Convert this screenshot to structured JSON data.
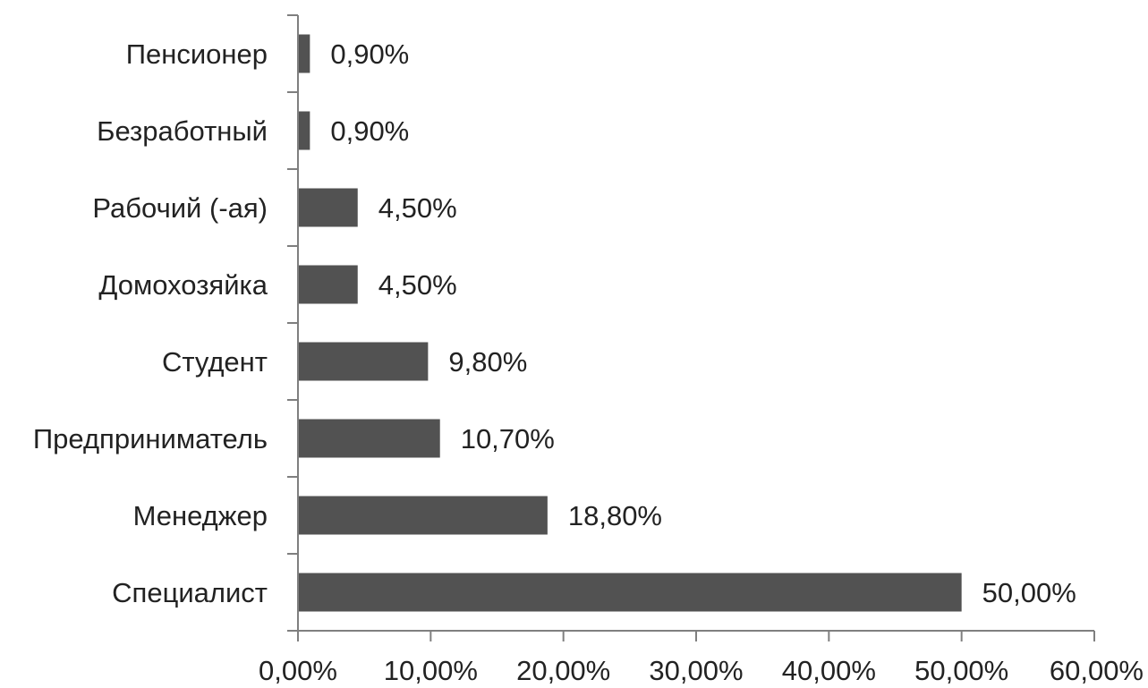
{
  "chart_data": {
    "type": "bar",
    "orientation": "horizontal",
    "categories": [
      "Пенсионер",
      "Безработный",
      "Рабочий (-ая)",
      "Домохозяйка",
      "Студент",
      "Предприниматель",
      "Менеджер",
      "Специалист"
    ],
    "values": [
      0.9,
      0.9,
      4.5,
      4.5,
      9.8,
      10.7,
      18.8,
      50.0
    ],
    "value_labels": [
      "0,90%",
      "0,90%",
      "4,50%",
      "4,50%",
      "9,80%",
      "10,70%",
      "18,80%",
      "50,00%"
    ],
    "xlim": [
      0,
      60
    ],
    "x_ticks": [
      0,
      10,
      20,
      30,
      40,
      50,
      60
    ],
    "x_tick_labels": [
      "0,00%",
      "10,00%",
      "20,00%",
      "30,00%",
      "40,00%",
      "50,00%",
      "60,00%"
    ],
    "title": "",
    "xlabel": "",
    "ylabel": "",
    "grid": false,
    "legend": "none",
    "bar_color": "#525252",
    "axis_color": "#7f7f7f"
  }
}
